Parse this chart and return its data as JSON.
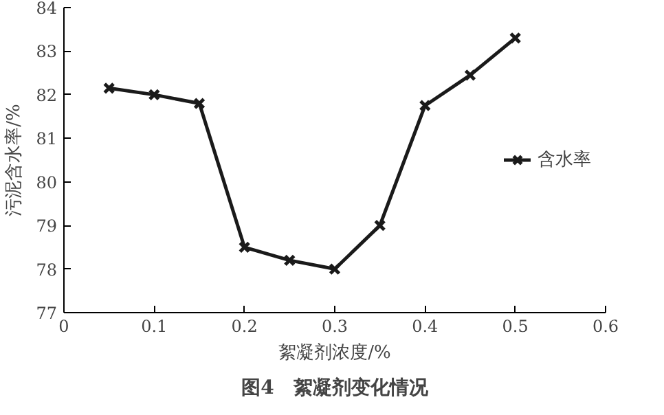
{
  "chart_data": {
    "type": "line",
    "xlabel": "絮凝剂浓度/%",
    "ylabel": "污泥含水率/%",
    "x": [
      0.05,
      0.1,
      0.15,
      0.2,
      0.25,
      0.3,
      0.35,
      0.4,
      0.45,
      0.5
    ],
    "series": [
      {
        "name": "含水率",
        "color": "#1a1a1a",
        "values": [
          82.15,
          82.0,
          81.8,
          78.5,
          78.2,
          78.0,
          79.0,
          81.75,
          82.45,
          83.3
        ]
      }
    ],
    "xlim": [
      0,
      0.6
    ],
    "xticks": [
      0,
      0.1,
      0.2,
      0.3,
      0.4,
      0.5,
      0.6
    ],
    "ylim": [
      77,
      84
    ],
    "yticks": [
      77,
      78,
      79,
      80,
      81,
      82,
      83,
      84
    ],
    "marker": "cross",
    "line_style": "solid",
    "legend": "right",
    "grid": false,
    "annotations": [
      "图4　絮凝剂变化情况"
    ]
  }
}
